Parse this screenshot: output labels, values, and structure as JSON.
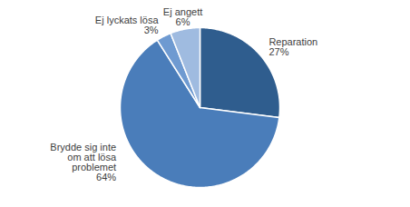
{
  "chart_data": {
    "type": "pie",
    "categories": [
      "Reparation",
      "Brydde sig inte om att lösa problemet",
      "Ej lyckats lösa",
      "Ej angett"
    ],
    "values": [
      27,
      64,
      3,
      6
    ],
    "value_labels": [
      "27%",
      "64%",
      "3%",
      "6%"
    ],
    "colors": [
      "#2f5d8e",
      "#4a7dba",
      "#6e9ad1",
      "#9fbbe0"
    ],
    "data_labels": true
  }
}
